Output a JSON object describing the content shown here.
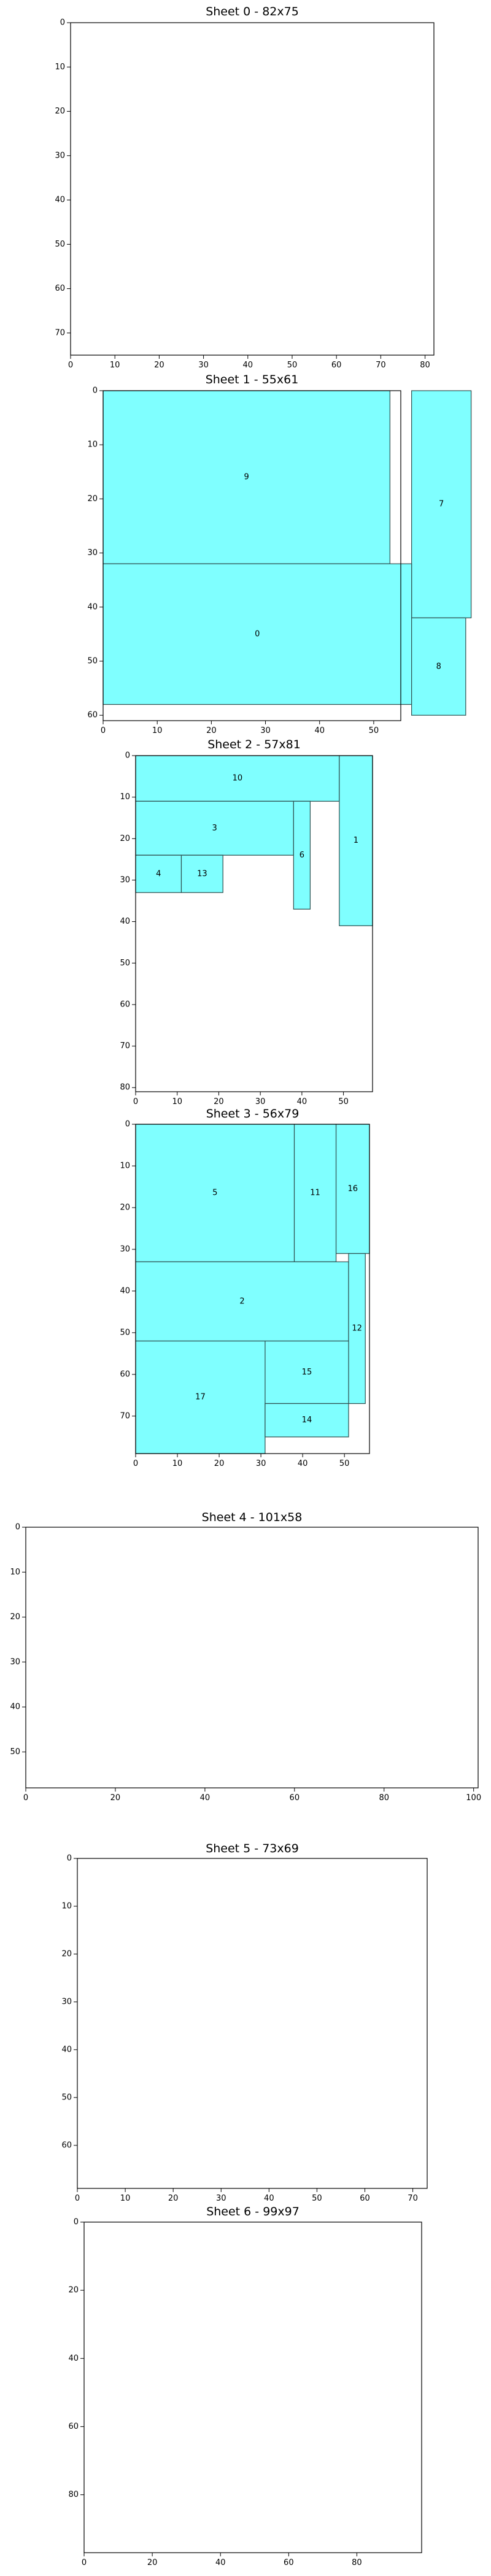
{
  "chart_data": {
    "type": "bar",
    "description_free": true,
    "piece_color": "#7fffff",
    "piece_edge_color": "#2f4f4f",
    "sheets": [
      {
        "title": "Sheet 0 - 82x75",
        "width": 82,
        "height": 75,
        "xticks": [
          0,
          10,
          20,
          30,
          40,
          50,
          60,
          70,
          80
        ],
        "yticks": [
          0,
          10,
          20,
          30,
          40,
          50,
          60,
          70
        ],
        "pieces": []
      },
      {
        "title": "Sheet 1 - 55x61",
        "width": 55,
        "height": 61,
        "xticks": [
          0,
          10,
          20,
          30,
          40,
          50
        ],
        "yticks": [
          0,
          10,
          20,
          30,
          40,
          50,
          60
        ],
        "pieces": [
          {
            "label": "9",
            "x": 0,
            "y": 0,
            "w": 53,
            "h": 32
          },
          {
            "label": "7",
            "x": 57,
            "y": 0,
            "w": 11,
            "h": 42
          },
          {
            "label": "0",
            "x": 0,
            "y": 32,
            "w": 57,
            "h": 26
          },
          {
            "label": "8",
            "x": 57,
            "y": 42,
            "w": 10,
            "h": 18
          }
        ]
      },
      {
        "title": "Sheet 2 - 57x81",
        "width": 57,
        "height": 81,
        "xticks": [
          0,
          10,
          20,
          30,
          40,
          50
        ],
        "yticks": [
          0,
          10,
          20,
          30,
          40,
          50,
          60,
          70,
          80
        ],
        "pieces": [
          {
            "label": "10",
            "x": 0,
            "y": 0,
            "w": 49,
            "h": 11
          },
          {
            "label": "1",
            "x": 49,
            "y": 0,
            "w": 8,
            "h": 41
          },
          {
            "label": "3",
            "x": 0,
            "y": 11,
            "w": 38,
            "h": 13
          },
          {
            "label": "6",
            "x": 38,
            "y": 11,
            "w": 4,
            "h": 26
          },
          {
            "label": "4",
            "x": 0,
            "y": 24,
            "w": 11,
            "h": 9
          },
          {
            "label": "13",
            "x": 11,
            "y": 24,
            "w": 10,
            "h": 9
          }
        ]
      },
      {
        "title": "Sheet 3 - 56x79",
        "width": 56,
        "height": 79,
        "xticks": [
          0,
          10,
          20,
          30,
          40,
          50
        ],
        "yticks": [
          0,
          10,
          20,
          30,
          40,
          50,
          60,
          70
        ],
        "pieces": [
          {
            "label": "5",
            "x": 0,
            "y": 0,
            "w": 38,
            "h": 33
          },
          {
            "label": "11",
            "x": 38,
            "y": 0,
            "w": 10,
            "h": 33
          },
          {
            "label": "16",
            "x": 48,
            "y": 0,
            "w": 8,
            "h": 31
          },
          {
            "label": "2",
            "x": 0,
            "y": 33,
            "w": 51,
            "h": 19
          },
          {
            "label": "12",
            "x": 51,
            "y": 31,
            "w": 4,
            "h": 36
          },
          {
            "label": "15",
            "x": 31,
            "y": 52,
            "w": 20,
            "h": 15
          },
          {
            "label": "17",
            "x": 0,
            "y": 52,
            "w": 31,
            "h": 27
          },
          {
            "label": "14",
            "x": 31,
            "y": 67,
            "w": 20,
            "h": 8
          }
        ]
      },
      {
        "title": "Sheet 4 - 101x58",
        "width": 101,
        "height": 58,
        "xticks": [
          0,
          20,
          40,
          60,
          80,
          100
        ],
        "yticks": [
          0,
          10,
          20,
          30,
          40,
          50
        ],
        "pieces": []
      },
      {
        "title": "Sheet 5 - 73x69",
        "width": 73,
        "height": 69,
        "xticks": [
          0,
          10,
          20,
          30,
          40,
          50,
          60,
          70
        ],
        "yticks": [
          0,
          10,
          20,
          30,
          40,
          50,
          60
        ],
        "pieces": []
      },
      {
        "title": "Sheet 6 - 99x97",
        "width": 99,
        "height": 97,
        "xticks": [
          0,
          20,
          40,
          60,
          80
        ],
        "yticks": [
          0,
          20,
          40,
          60,
          80
        ],
        "pieces": []
      }
    ]
  }
}
